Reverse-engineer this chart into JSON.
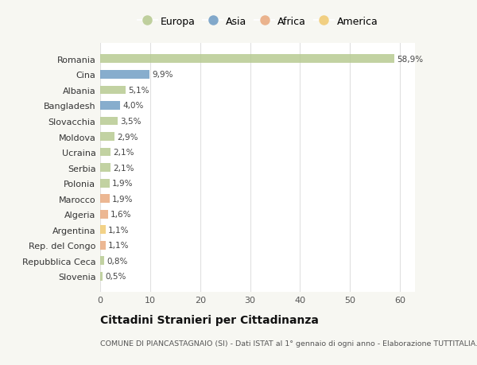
{
  "countries": [
    "Romania",
    "Cina",
    "Albania",
    "Bangladesh",
    "Slovacchia",
    "Moldova",
    "Ucraina",
    "Serbia",
    "Polonia",
    "Marocco",
    "Algeria",
    "Argentina",
    "Rep. del Congo",
    "Repubblica Ceca",
    "Slovenia"
  ],
  "values": [
    58.9,
    9.9,
    5.1,
    4.0,
    3.5,
    2.9,
    2.1,
    2.1,
    1.9,
    1.9,
    1.6,
    1.1,
    1.1,
    0.8,
    0.5
  ],
  "labels": [
    "58,9%",
    "9,9%",
    "5,1%",
    "4,0%",
    "3,5%",
    "2,9%",
    "2,1%",
    "2,1%",
    "1,9%",
    "1,9%",
    "1,6%",
    "1,1%",
    "1,1%",
    "0,8%",
    "0,5%"
  ],
  "colors": [
    "#b5c98e",
    "#6d9bc3",
    "#b5c98e",
    "#6d9bc3",
    "#b5c98e",
    "#b5c98e",
    "#b5c98e",
    "#b5c98e",
    "#b5c98e",
    "#e8a87c",
    "#e8a87c",
    "#f0c96e",
    "#e8a87c",
    "#b5c98e",
    "#b5c98e"
  ],
  "legend_labels": [
    "Europa",
    "Asia",
    "Africa",
    "America"
  ],
  "legend_colors": [
    "#b5c98e",
    "#6d9bc3",
    "#e8a87c",
    "#f0c96e"
  ],
  "title": "Cittadini Stranieri per Cittadinanza",
  "subtitle": "COMUNE DI PIANCASTAGNAIO (SI) - Dati ISTAT al 1° gennaio di ogni anno - Elaborazione TUTTITALIA.IT",
  "xlim": [
    0,
    63
  ],
  "xticks": [
    0,
    10,
    20,
    30,
    40,
    50,
    60
  ],
  "bg_color": "#f7f7f2",
  "plot_bg_color": "#ffffff",
  "grid_color": "#e0e0e0",
  "bar_height": 0.55
}
